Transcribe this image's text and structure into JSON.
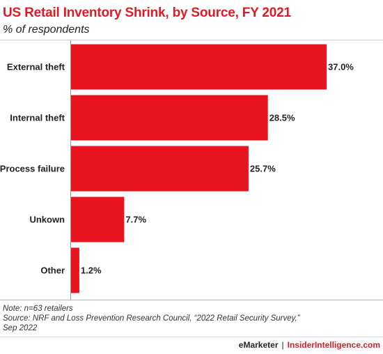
{
  "header": {
    "title": "US Retail Inventory Shrink, by Source, FY 2021",
    "subtitle": "% of respondents"
  },
  "chart_data": {
    "type": "bar",
    "orientation": "horizontal",
    "categories": [
      "External theft",
      "Internal theft",
      "Process failure",
      "Unkown",
      "Other"
    ],
    "values": [
      37.0,
      28.5,
      25.7,
      7.7,
      1.2
    ],
    "value_labels": [
      "37.0%",
      "28.5%",
      "25.7%",
      "7.7%",
      "1.2%"
    ],
    "title": "US Retail Inventory Shrink, by Source, FY 2021",
    "subtitle": "% of respondents",
    "xlim": [
      0,
      37.0
    ],
    "grid": false,
    "bar_color": "#e8141f"
  },
  "footer": {
    "note": "Note: n=63 retailers",
    "source_line1": "Source: NRF and Loss Prevention Research Council, “2022 Retail Security Survey,”",
    "source_line2": "Sep 2022",
    "brand_left": "eMarketer",
    "brand_separator": "|",
    "brand_right": "InsiderIntelligence.com"
  }
}
